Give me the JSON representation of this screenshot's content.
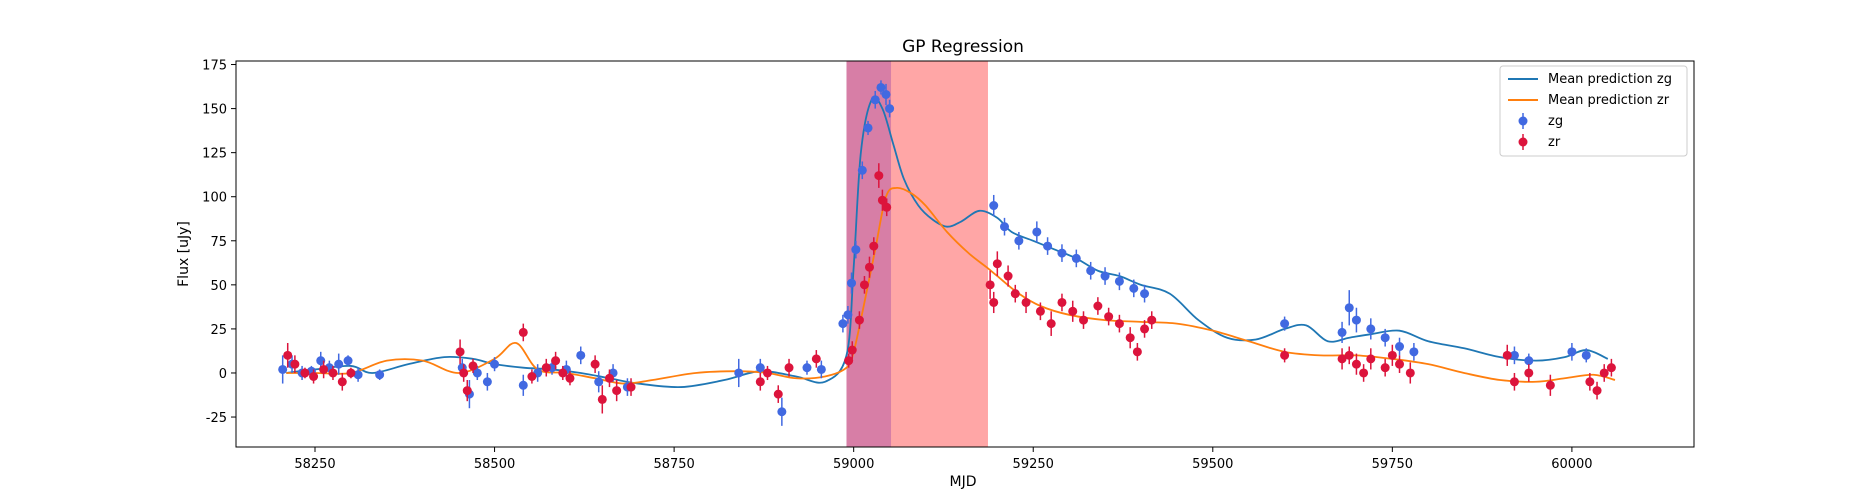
{
  "chart_data": {
    "type": "scatter",
    "title": "GP Regression",
    "xlabel": "MJD",
    "ylabel": "Flux [uJy]",
    "xlim": [
      58140,
      60170
    ],
    "ylim": [
      -42,
      177
    ],
    "xticks": [
      58250,
      58500,
      58750,
      59000,
      59250,
      59500,
      59750,
      60000
    ],
    "yticks": [
      -25,
      0,
      25,
      50,
      75,
      100,
      125,
      150,
      175
    ],
    "grid": false,
    "legend_position": "top-right",
    "shaded_regions": [
      {
        "x0": 58990,
        "x1": 59052,
        "color": "#7b7bff",
        "alpha": 0.55
      },
      {
        "x0": 58990,
        "x1": 59187,
        "color": "#ff3a3a",
        "alpha": 0.45
      }
    ],
    "series": [
      {
        "name": "Mean prediction zg",
        "kind": "line",
        "color": "#1f77b4",
        "x": [
          58210,
          58250,
          58300,
          58330,
          58380,
          58430,
          58470,
          58500,
          58540,
          58580,
          58620,
          58660,
          58700,
          58760,
          58820,
          58870,
          58920,
          58960,
          58990,
          59000,
          59010,
          59025,
          59040,
          59055,
          59070,
          59090,
          59110,
          59130,
          59150,
          59175,
          59200,
          59220,
          59250,
          59280,
          59310,
          59340,
          59370,
          59400,
          59440,
          59480,
          59520,
          59560,
          59600,
          59630,
          59660,
          59690,
          59720,
          59760,
          59800,
          59850,
          59900,
          59950,
          59990,
          60020,
          60050
        ],
        "y": [
          0,
          2,
          4,
          0,
          5,
          9,
          8,
          5,
          3,
          2,
          0,
          -3,
          -6,
          -8,
          -4,
          1,
          -2,
          -5,
          10,
          60,
          125,
          155,
          150,
          130,
          110,
          95,
          87,
          83,
          86,
          92,
          88,
          80,
          75,
          70,
          65,
          58,
          55,
          50,
          45,
          30,
          20,
          19,
          25,
          27,
          18,
          20,
          22,
          24,
          18,
          14,
          9,
          7,
          9,
          13,
          8
        ]
      },
      {
        "name": "Mean prediction zr",
        "kind": "line",
        "color": "#ff7f0e",
        "x": [
          58210,
          58250,
          58300,
          58350,
          58400,
          58450,
          58500,
          58530,
          58560,
          58600,
          58640,
          58680,
          58720,
          58780,
          58840,
          58880,
          58920,
          58960,
          58990,
          59000,
          59015,
          59030,
          59045,
          59060,
          59080,
          59100,
          59130,
          59160,
          59185,
          59200,
          59230,
          59260,
          59300,
          59350,
          59400,
          59450,
          59500,
          59550,
          59600,
          59650,
          59700,
          59750,
          59800,
          59850,
          59900,
          59950,
          59990,
          60030,
          60060
        ],
        "y": [
          0,
          0,
          0,
          7,
          7,
          0,
          8,
          17,
          2,
          0,
          -3,
          -6,
          -4,
          0,
          1,
          0,
          -3,
          -2,
          3,
          12,
          40,
          70,
          100,
          105,
          102,
          95,
          80,
          68,
          60,
          55,
          45,
          38,
          33,
          30,
          29,
          28,
          24,
          18,
          12,
          10,
          10,
          8,
          5,
          0,
          -4,
          -5,
          -3,
          -1,
          -4
        ]
      },
      {
        "name": "zg",
        "kind": "errorbar",
        "color": "#4169e1",
        "x": [
          58205,
          58218,
          58232,
          58245,
          58258,
          58270,
          58283,
          58296,
          58310,
          58340,
          58455,
          58465,
          58476,
          58490,
          58500,
          58540,
          58560,
          58580,
          58600,
          58620,
          58645,
          58665,
          58685,
          58840,
          58870,
          58900,
          58935,
          58955,
          58985,
          58992,
          58997,
          59003,
          59012,
          59020,
          59030,
          59038,
          59045,
          59050,
          59195,
          59210,
          59230,
          59255,
          59270,
          59290,
          59310,
          59330,
          59350,
          59370,
          59390,
          59405,
          59600,
          59680,
          59690,
          59700,
          59720,
          59740,
          59760,
          59780,
          59920,
          59940,
          60000,
          60020
        ],
        "y": [
          2,
          5,
          0,
          1,
          7,
          3,
          5,
          7,
          -1,
          -1,
          3,
          -12,
          0,
          -5,
          5,
          -7,
          0,
          3,
          2,
          10,
          -5,
          0,
          -8,
          0,
          3,
          -22,
          3,
          2,
          28,
          33,
          51,
          70,
          115,
          139,
          155,
          162,
          158,
          150,
          95,
          83,
          75,
          80,
          72,
          68,
          65,
          58,
          55,
          52,
          48,
          45,
          28,
          23,
          37,
          30,
          25,
          20,
          15,
          12,
          10,
          7,
          12,
          10
        ],
        "err": [
          8,
          5,
          4,
          3,
          5,
          4,
          6,
          3,
          4,
          3,
          5,
          8,
          4,
          5,
          4,
          6,
          5,
          4,
          5,
          5,
          6,
          5,
          5,
          8,
          5,
          8,
          4,
          5,
          5,
          5,
          6,
          5,
          5,
          4,
          5,
          4,
          6,
          5,
          6,
          5,
          5,
          6,
          5,
          5,
          5,
          5,
          5,
          5,
          5,
          5,
          4,
          6,
          10,
          7,
          6,
          5,
          5,
          5,
          5,
          4,
          5,
          4
        ]
      },
      {
        "name": "zr",
        "kind": "errorbar",
        "color": "#dc143c",
        "x": [
          58212,
          58222,
          58236,
          58248,
          58262,
          58275,
          58288,
          58300,
          58452,
          58457,
          58462,
          58470,
          58540,
          58552,
          58572,
          58585,
          58595,
          58605,
          58640,
          58650,
          58660,
          58670,
          58690,
          58870,
          58880,
          58895,
          58910,
          58948,
          58993,
          58998,
          59008,
          59015,
          59022,
          59028,
          59035,
          59040,
          59046,
          59190,
          59195,
          59200,
          59215,
          59225,
          59240,
          59260,
          59275,
          59290,
          59305,
          59320,
          59340,
          59355,
          59370,
          59385,
          59395,
          59405,
          59415,
          59600,
          59680,
          59690,
          59700,
          59710,
          59720,
          59740,
          59750,
          59760,
          59775,
          59910,
          59920,
          59940,
          59970,
          60025,
          60035,
          60045,
          60055
        ],
        "y": [
          10,
          5,
          0,
          -2,
          2,
          0,
          -5,
          0,
          12,
          0,
          -10,
          4,
          23,
          -2,
          3,
          7,
          0,
          -3,
          5,
          -15,
          -3,
          -10,
          -8,
          -5,
          0,
          -12,
          3,
          8,
          7,
          13,
          30,
          50,
          60,
          72,
          112,
          98,
          94,
          50,
          40,
          62,
          55,
          45,
          40,
          35,
          28,
          40,
          35,
          30,
          38,
          32,
          28,
          20,
          12,
          25,
          30,
          10,
          8,
          10,
          5,
          0,
          8,
          3,
          10,
          5,
          0,
          10,
          -5,
          0,
          -7,
          -5,
          -10,
          0,
          3
        ],
        "err": [
          7,
          5,
          3,
          4,
          5,
          4,
          5,
          3,
          7,
          5,
          6,
          4,
          5,
          4,
          5,
          5,
          4,
          4,
          5,
          8,
          5,
          6,
          5,
          5,
          4,
          5,
          5,
          5,
          4,
          5,
          5,
          5,
          6,
          5,
          7,
          6,
          5,
          8,
          6,
          7,
          6,
          5,
          6,
          5,
          7,
          5,
          6,
          5,
          5,
          5,
          5,
          6,
          5,
          5,
          5,
          4,
          6,
          5,
          6,
          5,
          6,
          5,
          6,
          5,
          6,
          6,
          5,
          5,
          6,
          5,
          5,
          5,
          5
        ]
      }
    ]
  }
}
